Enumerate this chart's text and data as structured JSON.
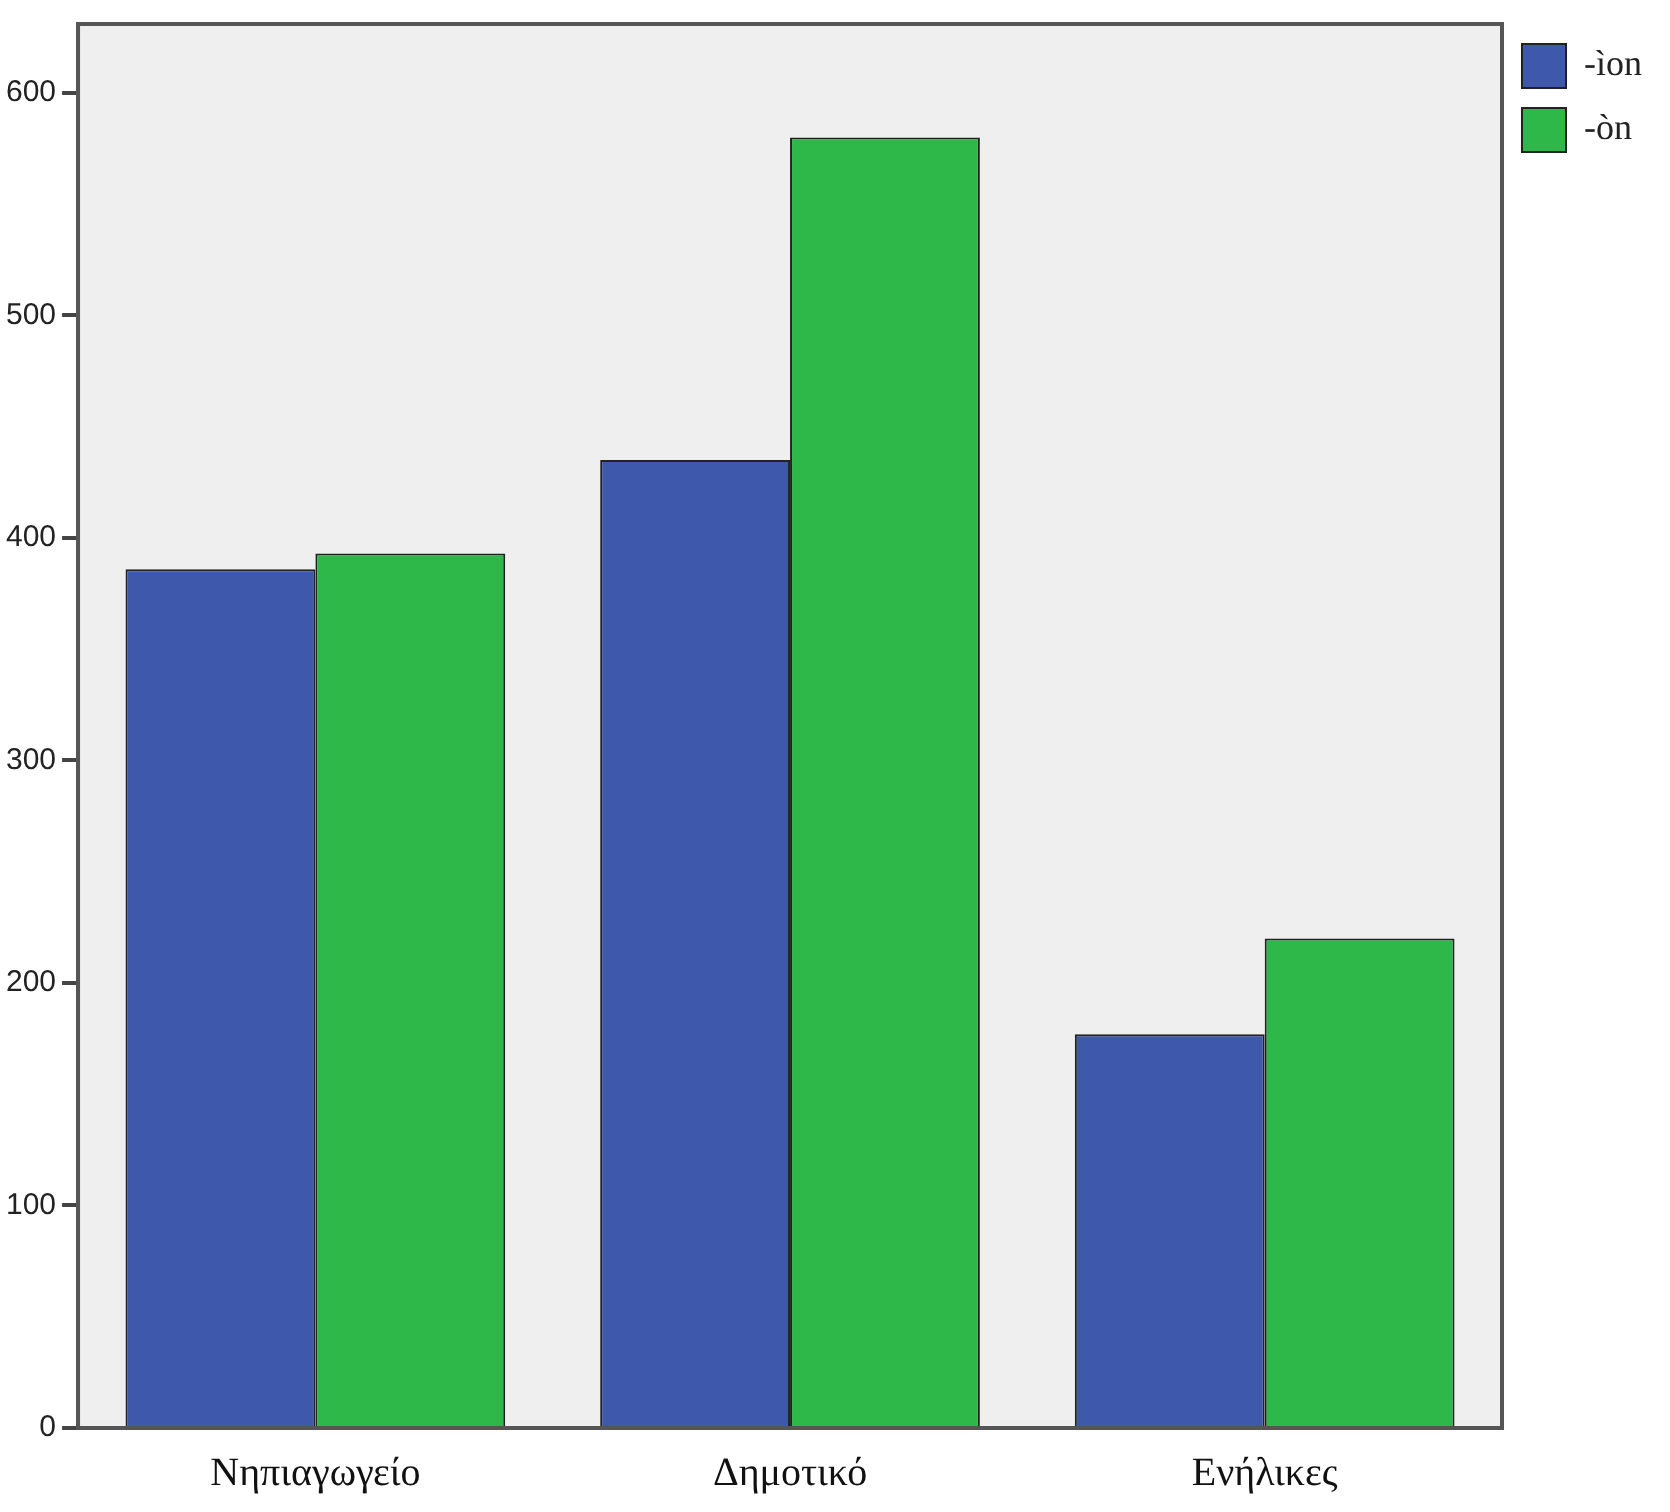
{
  "chart_data": {
    "type": "bar",
    "categories": [
      "Νηπιαγωγείο",
      "Δημοτικό",
      "Ενήλικες"
    ],
    "series": [
      {
        "name": "-ìon",
        "color": "#3e58ac",
        "values": [
          386,
          435,
          177
        ]
      },
      {
        "name": "-òn",
        "color": "#2eb84a",
        "values": [
          393,
          580,
          220
        ]
      }
    ],
    "ylim": [
      0,
      631
    ],
    "yticks": [
      0,
      100,
      200,
      300,
      400,
      500,
      600
    ],
    "grid": false,
    "legend": "top right"
  }
}
